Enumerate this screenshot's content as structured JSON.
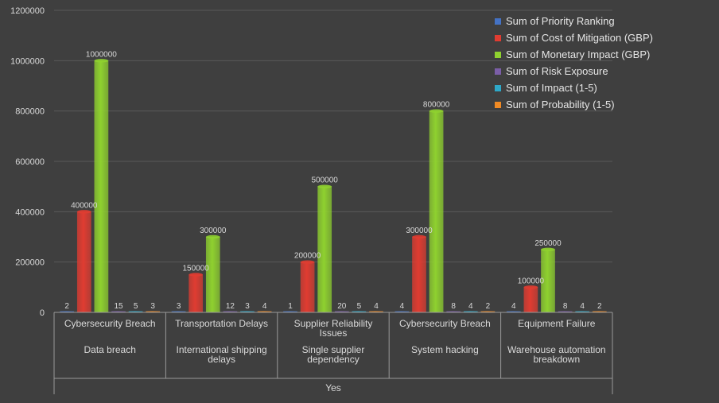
{
  "chart_data": {
    "type": "bar",
    "categories": [
      "Cybersecurity Breach",
      "Transportation Delays",
      "Supplier Reliability Issues",
      "Cybersecurity Breach",
      "Equipment Failure"
    ],
    "subcategories": [
      "Data breach",
      "International shipping delays",
      "Single supplier dependency",
      "System hacking",
      "Warehouse automation breakdown"
    ],
    "group_label": "Yes",
    "ylim": [
      0,
      1200000
    ],
    "yticks": [
      0,
      200000,
      400000,
      600000,
      800000,
      1000000,
      1200000
    ],
    "grid": true,
    "legend_position": "top-right",
    "series": [
      {
        "name": "Sum of Priority Ranking",
        "color": "#4472c4",
        "values": [
          2,
          3,
          1,
          4,
          4
        ]
      },
      {
        "name": "Sum of Cost of Mitigation (GBP)",
        "color": "#e03c31",
        "values": [
          400000,
          150000,
          200000,
          300000,
          100000
        ]
      },
      {
        "name": "Sum of Monetary Impact (GBP)",
        "color": "#8fd12f",
        "values": [
          1000000,
          300000,
          500000,
          800000,
          250000
        ]
      },
      {
        "name": "Sum of Risk Exposure",
        "color": "#7b5ea7",
        "values": [
          15,
          12,
          20,
          8,
          8
        ]
      },
      {
        "name": "Sum of Impact (1-5)",
        "color": "#2ea8c8",
        "values": [
          5,
          3,
          5,
          4,
          4
        ]
      },
      {
        "name": "Sum of Probability (1-5)",
        "color": "#f08a24",
        "values": [
          3,
          4,
          4,
          2,
          2
        ]
      }
    ]
  }
}
